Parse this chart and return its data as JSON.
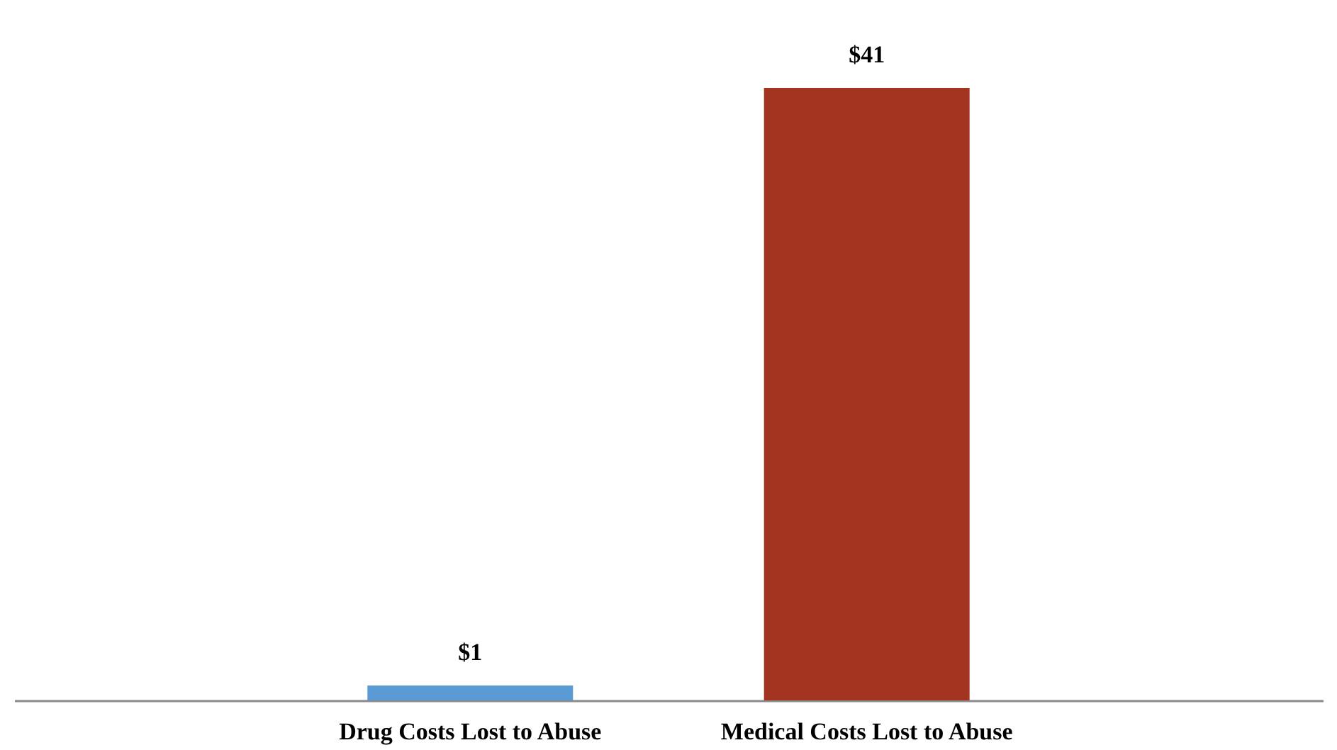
{
  "chart_data": {
    "type": "bar",
    "categories": [
      "Drug Costs Lost to Abuse",
      "Medical Costs Lost to Abuse"
    ],
    "values": [
      1,
      41
    ],
    "colors": [
      "#5b9bd5",
      "#a33420"
    ],
    "value_labels": [
      "$1",
      "$41"
    ]
  }
}
